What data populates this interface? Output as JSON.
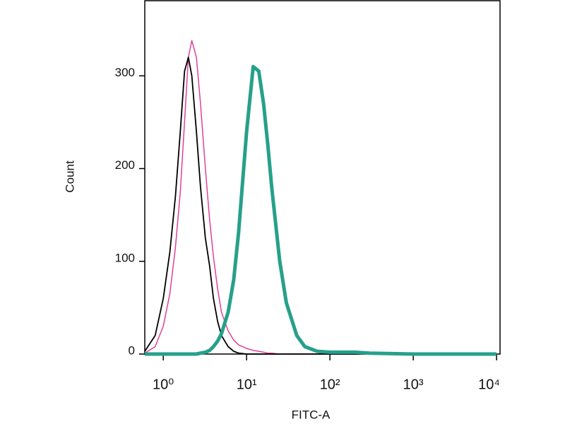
{
  "chart_data": {
    "type": "line",
    "xlabel": "FITC-A",
    "ylabel": "Count",
    "xscale": "log",
    "xlim": [
      0.6,
      11000
    ],
    "ylim": [
      0,
      381
    ],
    "xticks": [
      {
        "value": 1,
        "label": "10⁰"
      },
      {
        "value": 10,
        "label": "10¹"
      },
      {
        "value": 100,
        "label": "10²"
      },
      {
        "value": 1000,
        "label": "10³"
      },
      {
        "value": 10000,
        "label": "10⁴"
      }
    ],
    "yticks": [
      0,
      100,
      200,
      300
    ],
    "x": [
      0.6,
      0.8,
      1,
      1.2,
      1.4,
      1.6,
      1.8,
      2,
      2.2,
      2.5,
      2.8,
      3.2,
      3.6,
      4,
      4.5,
      5,
      6,
      7,
      8,
      10,
      12,
      14,
      16,
      18,
      20,
      25,
      30,
      40,
      50,
      70,
      100,
      200,
      300,
      1000,
      10000
    ],
    "series": [
      {
        "color": "#e0409a",
        "width": 1.5,
        "values": [
          1,
          8,
          30,
          65,
          115,
          175,
          250,
          320,
          338,
          320,
          270,
          200,
          145,
          105,
          70,
          45,
          25,
          15,
          10,
          6,
          4,
          3,
          2,
          1,
          1,
          0,
          0,
          0,
          0,
          0,
          0,
          0,
          0,
          0,
          0
        ]
      },
      {
        "color": "#000000",
        "width": 1.8,
        "values": [
          3,
          20,
          60,
          110,
          170,
          240,
          305,
          320,
          300,
          240,
          180,
          125,
          95,
          60,
          35,
          20,
          8,
          3,
          1,
          0,
          0,
          0,
          0,
          0,
          0,
          0,
          0,
          0,
          0,
          0,
          0,
          0,
          0,
          0,
          0
        ]
      },
      {
        "color": "#26a08a",
        "width": 5,
        "values": [
          0,
          0,
          0,
          0,
          0,
          0,
          0,
          0,
          0,
          0,
          1,
          2,
          4,
          8,
          14,
          22,
          45,
          80,
          130,
          240,
          310,
          305,
          270,
          225,
          180,
          100,
          55,
          20,
          8,
          3,
          2,
          2,
          1,
          0,
          0
        ]
      }
    ]
  }
}
